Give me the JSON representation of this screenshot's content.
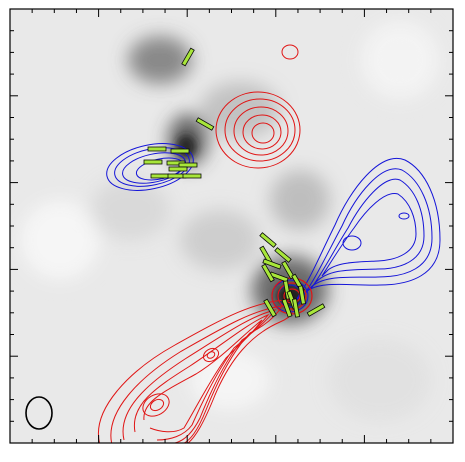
{
  "figure": {
    "background_color": "#ffffff",
    "frame_color": "#000000",
    "map_base_gray": "#e9e9e9"
  },
  "colors": {
    "redshifted": "#e01515",
    "blueshifted": "#1515d8",
    "polarization": "#a8e63a",
    "polarization_edge": "#0a0a0a",
    "beam": "#000000"
  },
  "icons": {
    "beam": "beam-ellipse-icon",
    "source_marker": "source-marker-icon"
  },
  "text": {}
}
